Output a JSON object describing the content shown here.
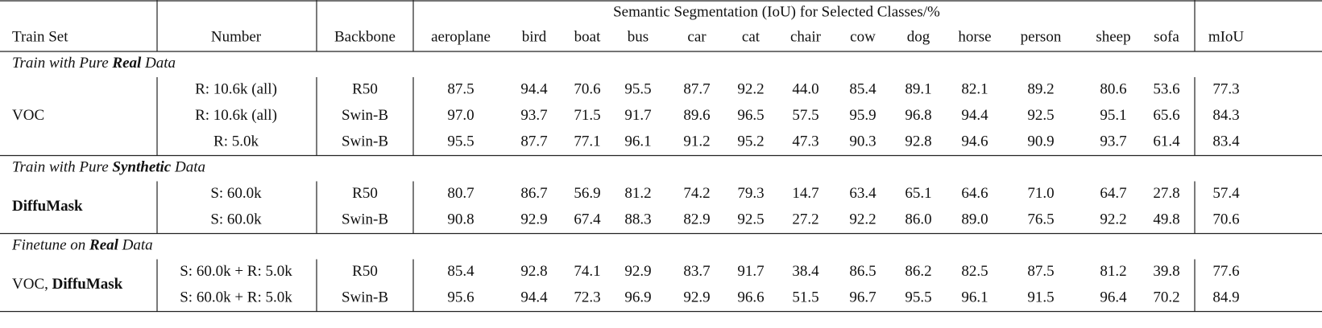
{
  "table": {
    "group_title": "Semantic Segmentation (IoU) for Selected Classes/%",
    "columns": [
      "Train Set",
      "Number",
      "Backbone",
      "aeroplane",
      "bird",
      "boat",
      "bus",
      "car",
      "cat",
      "chair",
      "cow",
      "dog",
      "horse",
      "person",
      "sheep",
      "sofa",
      "mIoU"
    ],
    "sections": [
      {
        "title": [
          "Train with Pure ",
          "Real",
          " Data"
        ],
        "train_set": "VOC",
        "rows": [
          {
            "number": "R: 10.6k (all)",
            "backbone": "R50",
            "values": [
              "87.5",
              "94.4",
              "70.6",
              "95.5",
              "87.7",
              "92.2",
              "44.0",
              "85.4",
              "89.1",
              "82.1",
              "89.2",
              "80.6",
              "53.6",
              "77.3"
            ]
          },
          {
            "number": "R: 10.6k (all)",
            "backbone": "Swin-B",
            "values": [
              "97.0",
              "93.7",
              "71.5",
              "91.7",
              "89.6",
              "96.5",
              "57.5",
              "95.9",
              "96.8",
              "94.4",
              "92.5",
              "95.1",
              "65.6",
              "84.3"
            ]
          },
          {
            "number": "R: 5.0k",
            "backbone": "Swin-B",
            "values": [
              "95.5",
              "87.7",
              "77.1",
              "96.1",
              "91.2",
              "95.2",
              "47.3",
              "90.3",
              "92.8",
              "94.6",
              "90.9",
              "93.7",
              "61.4",
              "83.4"
            ]
          }
        ]
      },
      {
        "title": [
          "Train with Pure ",
          "Synthetic",
          " Data"
        ],
        "train_set_bold": "DiffuMask",
        "rows": [
          {
            "number": "S: 60.0k",
            "backbone": "R50",
            "values": [
              "80.7",
              "86.7",
              "56.9",
              "81.2",
              "74.2",
              "79.3",
              "14.7",
              "63.4",
              "65.1",
              "64.6",
              "71.0",
              "64.7",
              "27.8",
              "57.4"
            ]
          },
          {
            "number": "S: 60.0k",
            "backbone": "Swin-B",
            "values": [
              "90.8",
              "92.9",
              "67.4",
              "88.3",
              "82.9",
              "92.5",
              "27.2",
              "92.2",
              "86.0",
              "89.0",
              "76.5",
              "92.2",
              "49.8",
              "70.6"
            ]
          }
        ]
      },
      {
        "title": [
          "Finetune on ",
          "Real",
          " Data"
        ],
        "train_set": "VOC, ",
        "train_set_bold": "DiffuMask",
        "rows": [
          {
            "number": "S: 60.0k + R: 5.0k",
            "backbone": "R50",
            "values": [
              "85.4",
              "92.8",
              "74.1",
              "92.9",
              "83.7",
              "91.7",
              "38.4",
              "86.5",
              "86.2",
              "82.5",
              "87.5",
              "81.2",
              "39.8",
              "77.6"
            ]
          },
          {
            "number": "S: 60.0k + R: 5.0k",
            "backbone": "Swin-B",
            "values": [
              "95.6",
              "94.4",
              "72.3",
              "96.9",
              "92.9",
              "96.6",
              "51.5",
              "96.7",
              "95.5",
              "96.1",
              "91.5",
              "96.4",
              "70.2",
              "84.9"
            ]
          }
        ]
      }
    ]
  }
}
